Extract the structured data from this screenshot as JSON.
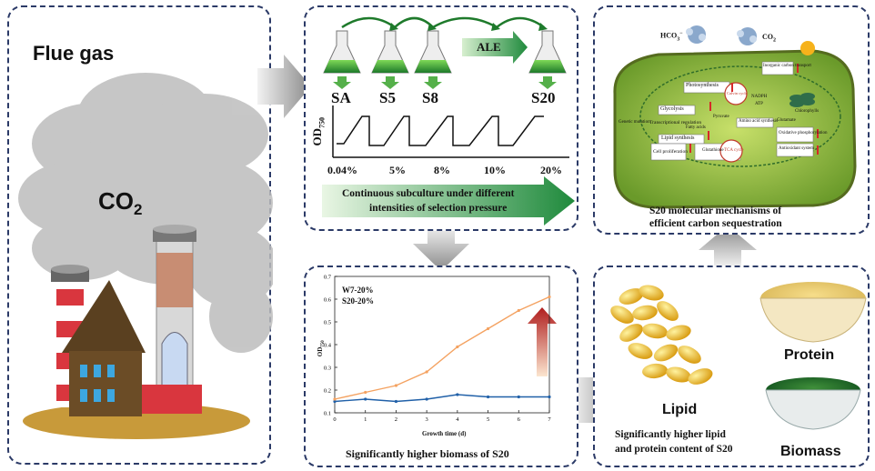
{
  "flue_panel": {
    "title": "Flue gas",
    "co2_main": "CO",
    "co2_sub": "2"
  },
  "ale_panel": {
    "ale_label": "ALE",
    "flasks": [
      "SA",
      "S5",
      "S8",
      "S20"
    ],
    "y_label_main": "OD",
    "y_label_sub": "750",
    "concentrations": [
      "0.04%",
      "5%",
      "8%",
      "10%",
      "20%"
    ],
    "banner_line1": "Continuous subculture under different",
    "banner_line2": "intensities of selection pressure"
  },
  "mech_panel": {
    "hco3": "HCO",
    "co2": "CO",
    "caption_line1": "S20 molecular mechanisms of",
    "caption_line2": "efficient carbon sequestration",
    "labels": {
      "photosynthesis": "Photosynthesis",
      "glycolysis": "Glycolysis",
      "calvin": "Calvin cycle",
      "nadph": "NADPH",
      "atp": "ATP",
      "chlorophyll": "Chlorophylls",
      "inorganic": "Inorganic carbon transport",
      "genetic": "Genetic mutation",
      "transcription": "Transcriptional regulation",
      "lipid": "Lipid synthesis",
      "amino": "Amino acid synthesis",
      "tca": "TCA cycle",
      "oxidative": "Oxidative phosphorylation",
      "glutathione": "Glutathione",
      "antioxidant": "Antioxidant system",
      "cell": "Cell proliferation",
      "pyruvate": "Pyruvate",
      "fatty": "Fatty acids",
      "glutamate": "Glutamate"
    }
  },
  "biomass_panel": {
    "legend1": "W7-20%",
    "legend2": "S20-20%",
    "x_label": "Growth time (d)",
    "y_label": "OD",
    "y_label_sub": "750",
    "caption": "Significantly higher biomass of S20",
    "colors": {
      "w7": "#2060a8",
      "s20": "#f4a261"
    }
  },
  "products_panel": {
    "lipid": "Lipid",
    "protein": "Protein",
    "biomass": "Biomass",
    "caption_line1": "Significantly higher lipid",
    "caption_line2": "and protein content of S20"
  },
  "chart_data": {
    "type": "line",
    "x": [
      0,
      1,
      2,
      3,
      4,
      5,
      6,
      7
    ],
    "x_ticks": [
      "0",
      "1",
      "2",
      "3",
      "4",
      "5",
      "6",
      "7"
    ],
    "y_ticks": [
      "0.1",
      "0.2",
      "0.3",
      "0.4",
      "0.5",
      "0.6",
      "0.7"
    ],
    "xlim": [
      0,
      7
    ],
    "ylim": [
      0.1,
      0.7
    ],
    "xlabel": "Growth time (d)",
    "ylabel": "OD750",
    "legend": "top-left",
    "series": [
      {
        "name": "W7-20%",
        "color": "#2060a8",
        "values": [
          0.15,
          0.16,
          0.15,
          0.16,
          0.18,
          0.17,
          0.17,
          0.17
        ]
      },
      {
        "name": "S20-20%",
        "color": "#f4a261",
        "values": [
          0.16,
          0.19,
          0.22,
          0.28,
          0.39,
          0.47,
          0.55,
          0.61
        ]
      }
    ]
  }
}
